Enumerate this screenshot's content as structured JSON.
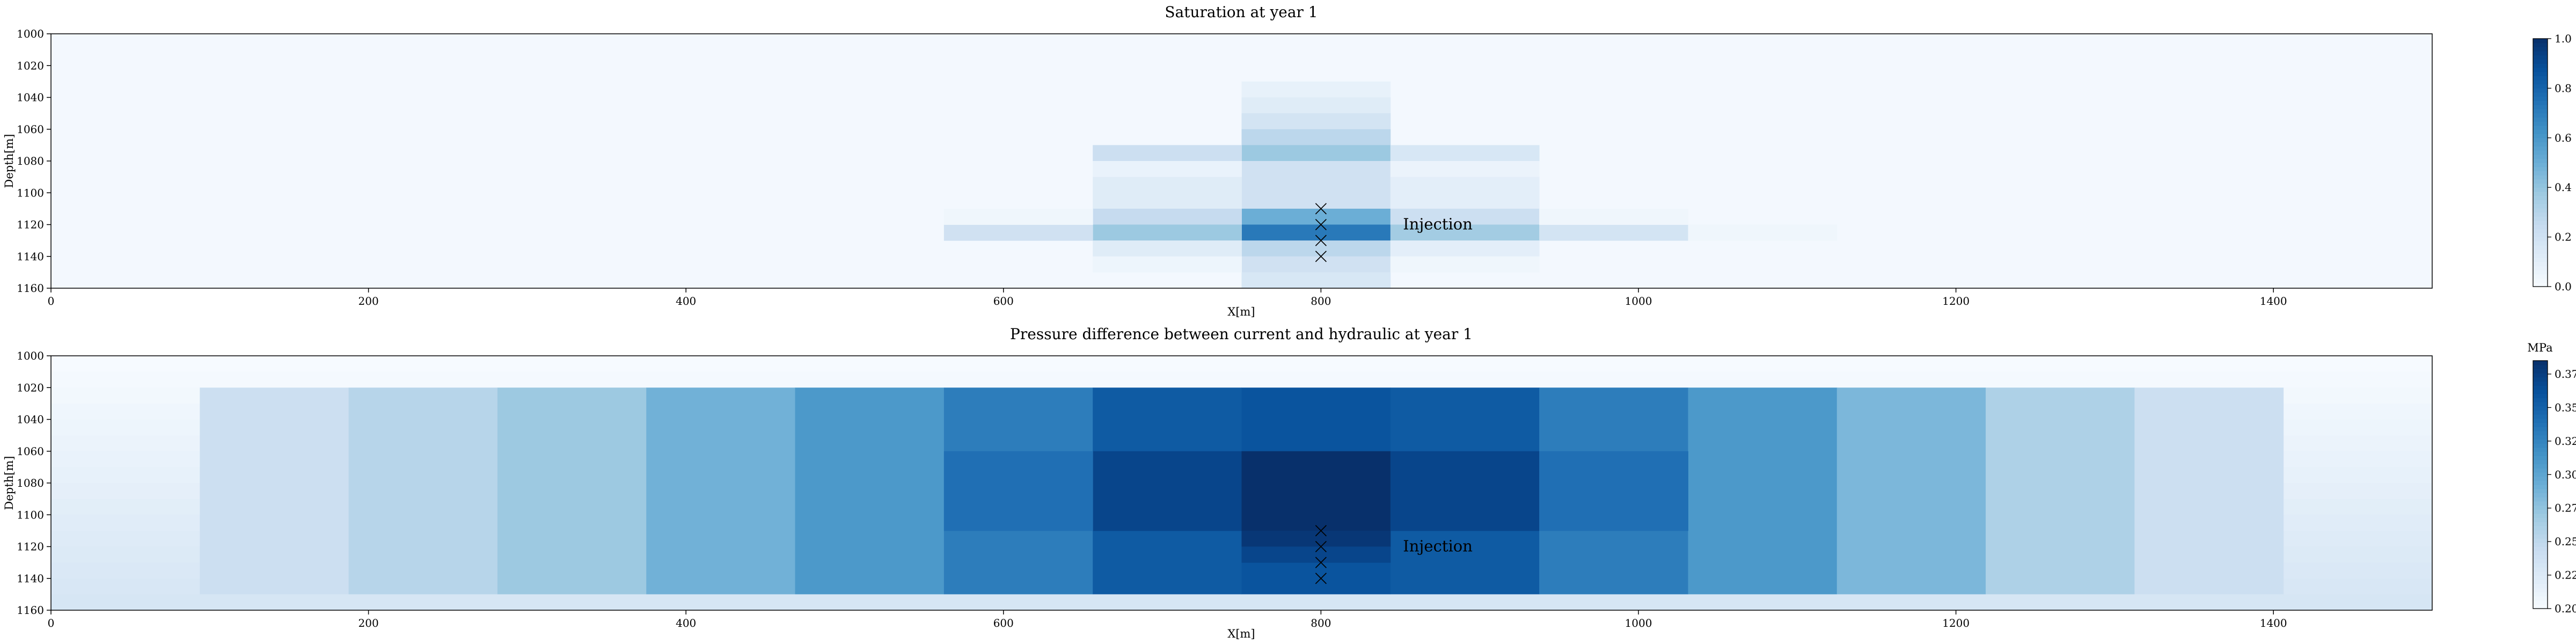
{
  "chart_data": [
    {
      "type": "heatmap",
      "title": "Saturation at year 1",
      "xlabel": "X[m]",
      "ylabel": "Depth[m]",
      "xlim": [
        0,
        1500
      ],
      "ylim": [
        1160,
        1000
      ],
      "x_ticks": [
        "0",
        "200",
        "400",
        "600",
        "800",
        "1000",
        "1200",
        "1400"
      ],
      "y_ticks": [
        "1000",
        "1020",
        "1040",
        "1060",
        "1080",
        "1100",
        "1120",
        "1140",
        "1160"
      ],
      "colorbar": {
        "min": 0.0,
        "max": 1.0,
        "label": "",
        "ticks": [
          "0.0",
          "0.2",
          "0.4",
          "0.6",
          "0.8",
          "1.0"
        ]
      },
      "background_value": 0.02,
      "cells": [
        [
          750,
          843.75,
          1030,
          1040,
          0.08
        ],
        [
          750,
          843.75,
          1040,
          1050,
          0.12
        ],
        [
          750,
          843.75,
          1050,
          1060,
          0.18
        ],
        [
          750,
          843.75,
          1060,
          1070,
          0.28
        ],
        [
          750,
          843.75,
          1070,
          1080,
          0.38
        ],
        [
          750,
          843.75,
          1080,
          1090,
          0.2
        ],
        [
          750,
          843.75,
          1090,
          1100,
          0.2
        ],
        [
          750,
          843.75,
          1100,
          1110,
          0.2
        ],
        [
          750,
          843.75,
          1110,
          1120,
          0.5
        ],
        [
          750,
          843.75,
          1120,
          1130,
          0.72
        ],
        [
          750,
          843.75,
          1130,
          1140,
          0.28
        ],
        [
          750,
          843.75,
          1140,
          1150,
          0.2
        ],
        [
          750,
          843.75,
          1150,
          1160,
          0.16
        ],
        [
          656.25,
          750,
          1070,
          1080,
          0.22
        ],
        [
          656.25,
          750,
          1080,
          1090,
          0.07
        ],
        [
          656.25,
          750,
          1090,
          1100,
          0.12
        ],
        [
          656.25,
          750,
          1100,
          1110,
          0.12
        ],
        [
          656.25,
          750,
          1110,
          1120,
          0.25
        ],
        [
          656.25,
          750,
          1120,
          1130,
          0.38
        ],
        [
          656.25,
          750,
          1130,
          1140,
          0.12
        ],
        [
          656.25,
          750,
          1140,
          1150,
          0.05
        ],
        [
          843.75,
          937.5,
          1070,
          1080,
          0.16
        ],
        [
          843.75,
          937.5,
          1080,
          1090,
          0.06
        ],
        [
          843.75,
          937.5,
          1090,
          1100,
          0.1
        ],
        [
          843.75,
          937.5,
          1100,
          1110,
          0.1
        ],
        [
          843.75,
          937.5,
          1110,
          1120,
          0.22
        ],
        [
          843.75,
          937.5,
          1120,
          1130,
          0.36
        ],
        [
          843.75,
          937.5,
          1130,
          1140,
          0.1
        ],
        [
          843.75,
          937.5,
          1140,
          1150,
          0.04
        ],
        [
          562.5,
          656.25,
          1120,
          1130,
          0.2
        ],
        [
          562.5,
          656.25,
          1110,
          1120,
          0.04
        ],
        [
          937.5,
          1031.25,
          1120,
          1130,
          0.18
        ],
        [
          937.5,
          1031.25,
          1110,
          1120,
          0.04
        ],
        [
          1031.25,
          1125,
          1120,
          1130,
          0.04
        ]
      ],
      "markers": [
        {
          "x": 800,
          "y": 1110
        },
        {
          "x": 800,
          "y": 1120
        },
        {
          "x": 800,
          "y": 1130
        },
        {
          "x": 800,
          "y": 1140
        }
      ],
      "annotation": {
        "text": "Injection",
        "x": 850,
        "y": 1120
      }
    },
    {
      "type": "heatmap",
      "title": "Pressure difference between current and hydraulic at year 1",
      "xlabel": "X[m]",
      "ylabel": "Depth[m]",
      "xlim": [
        0,
        1500
      ],
      "ylim": [
        1160,
        1000
      ],
      "x_ticks": [
        "0",
        "200",
        "400",
        "600",
        "800",
        "1000",
        "1200",
        "1400"
      ],
      "y_ticks": [
        "1000",
        "1020",
        "1040",
        "1060",
        "1080",
        "1100",
        "1120",
        "1140",
        "1160"
      ],
      "colorbar": {
        "min": 0.2,
        "max": 0.385,
        "label": "MPa",
        "ticks": [
          "0.200",
          "0.225",
          "0.250",
          "0.275",
          "0.300",
          "0.325",
          "0.350",
          "0.375"
        ]
      },
      "background_gradient": {
        "top": 0.2,
        "bottom": 0.232
      },
      "columns_x": [
        93.75,
        187.5,
        281.25,
        375,
        468.75,
        562.5,
        656.25,
        750,
        843.75,
        937.5,
        1031.25,
        1125,
        1218.75,
        1312.5,
        1406.25
      ],
      "columns_value": [
        0.24,
        0.255,
        0.27,
        0.29,
        0.31,
        0.33,
        0.355,
        0.36,
        0.355,
        0.33,
        0.31,
        0.285,
        0.26,
        0.24
      ],
      "center_block": [
        {
          "x0": 656.25,
          "x1": 750,
          "y0": 1060,
          "y1": 1110,
          "v": 0.37
        },
        {
          "x0": 750,
          "x1": 843.75,
          "y0": 1060,
          "y1": 1110,
          "v": 0.385
        },
        {
          "x0": 843.75,
          "x1": 937.5,
          "y0": 1060,
          "y1": 1110,
          "v": 0.37
        },
        {
          "x0": 562.5,
          "x1": 656.25,
          "y0": 1060,
          "y1": 1110,
          "v": 0.34
        },
        {
          "x0": 937.5,
          "x1": 1031.25,
          "y0": 1060,
          "y1": 1110,
          "v": 0.34
        },
        {
          "x0": 750,
          "x1": 843.75,
          "y0": 1110,
          "y1": 1120,
          "v": 0.38
        },
        {
          "x0": 750,
          "x1": 843.75,
          "y0": 1120,
          "y1": 1130,
          "v": 0.37
        }
      ],
      "markers": [
        {
          "x": 800,
          "y": 1110
        },
        {
          "x": 800,
          "y": 1120
        },
        {
          "x": 800,
          "y": 1130
        },
        {
          "x": 800,
          "y": 1140
        }
      ],
      "annotation": {
        "text": "Injection",
        "x": 850,
        "y": 1120
      }
    }
  ]
}
